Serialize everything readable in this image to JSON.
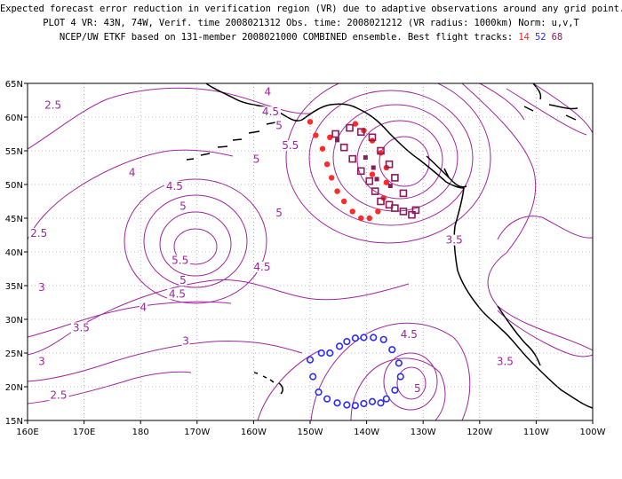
{
  "title": {
    "line1": "Expected forecast error reduction in verification region (VR) due to adaptive observations around any grid point.",
    "line2": "PLOT 4 VR: 43N, 74W, Verif. time 2008021312 Obs. time: 2008021212 (VR radius: 1000km) Norm: u,v,T",
    "line3_prefix": "NCEP/UW ETKF based on 131-member 2008021000 COMBINED ensemble.  Best flight tracks: ",
    "flight_a": "14",
    "flight_b": "52",
    "flight_c": "68"
  },
  "colors": {
    "contour": "#a0269e",
    "flight_14": "#ff2a2a",
    "flight_52": "#2a2aff",
    "flight_68": "#8b1a5a"
  },
  "axes": {
    "lon_labels": [
      "160E",
      "170E",
      "180",
      "170W",
      "160W",
      "150W",
      "140W",
      "130W",
      "120W",
      "110W",
      "100W"
    ],
    "lat_labels": [
      "65N",
      "60N",
      "55N",
      "50N",
      "45N",
      "40N",
      "35N",
      "30N",
      "25N",
      "20N",
      "15N"
    ],
    "lon_range": [
      160,
      260
    ],
    "lat_range": [
      15,
      65
    ],
    "grid": true
  },
  "contour_labels": [
    {
      "text": "2.5",
      "lon": 164.5,
      "lat": 61.5
    },
    {
      "text": "4",
      "lon": 202.5,
      "lat": 63.5
    },
    {
      "text": "4.5",
      "lon": 203,
      "lat": 60.5
    },
    {
      "text": "5",
      "lon": 204.5,
      "lat": 58.5
    },
    {
      "text": "5.5",
      "lon": 206.5,
      "lat": 55.5
    },
    {
      "text": "5",
      "lon": 200.5,
      "lat": 53.5
    },
    {
      "text": "4",
      "lon": 178.5,
      "lat": 51.5
    },
    {
      "text": "4.5",
      "lon": 186,
      "lat": 49.5
    },
    {
      "text": "5",
      "lon": 187.5,
      "lat": 46.5
    },
    {
      "text": "2.5",
      "lon": 162,
      "lat": 42.5
    },
    {
      "text": "5.5",
      "lon": 187,
      "lat": 38.5
    },
    {
      "text": "5",
      "lon": 187.5,
      "lat": 35.5
    },
    {
      "text": "4.5",
      "lon": 186.5,
      "lat": 33.5
    },
    {
      "text": "4.5",
      "lon": 201.5,
      "lat": 37.5
    },
    {
      "text": "5",
      "lon": 204.5,
      "lat": 45.5
    },
    {
      "text": "3.5",
      "lon": 235.5,
      "lat": 41.5
    },
    {
      "text": "3",
      "lon": 162.5,
      "lat": 34.5
    },
    {
      "text": "4",
      "lon": 180.5,
      "lat": 31.5
    },
    {
      "text": "3.5",
      "lon": 169.5,
      "lat": 28.5
    },
    {
      "text": "3",
      "lon": 188,
      "lat": 26.5
    },
    {
      "text": "3",
      "lon": 162.5,
      "lat": 23.5
    },
    {
      "text": "2.5",
      "lon": 165.5,
      "lat": 18.5
    },
    {
      "text": "4.5",
      "lon": 227.5,
      "lat": 27.5
    },
    {
      "text": "3.5",
      "lon": 244.5,
      "lat": 23.5
    },
    {
      "text": "5",
      "lon": 229,
      "lat": 19.5
    }
  ],
  "flight_14_points": [
    [
      210,
      59.3
    ],
    [
      211,
      57.3
    ],
    [
      212.2,
      55.3
    ],
    [
      213,
      53
    ],
    [
      213.8,
      51
    ],
    [
      214.8,
      49
    ],
    [
      216,
      47.5
    ],
    [
      217.5,
      46
    ],
    [
      219,
      45
    ],
    [
      220.5,
      45
    ],
    [
      222,
      46
    ],
    [
      223,
      48
    ],
    [
      223.5,
      50.3
    ],
    [
      223.5,
      52.5
    ],
    [
      222.5,
      54.7
    ],
    [
      221,
      56.5
    ],
    [
      219.5,
      58
    ],
    [
      213.5,
      57
    ],
    [
      218,
      59
    ],
    [
      221,
      51.5
    ]
  ],
  "flight_52_points": [
    [
      210,
      24
    ],
    [
      210.5,
      21.5
    ],
    [
      211.5,
      19.2
    ],
    [
      213,
      18.2
    ],
    [
      214.8,
      17.6
    ],
    [
      216.5,
      17.3
    ],
    [
      218,
      17.2
    ],
    [
      219.5,
      17.5
    ],
    [
      221,
      17.8
    ],
    [
      222.5,
      17.6
    ],
    [
      223.5,
      18.2
    ],
    [
      225,
      19.5
    ],
    [
      226,
      21.5
    ],
    [
      225.7,
      23.5
    ],
    [
      224.5,
      25.5
    ],
    [
      223,
      27
    ],
    [
      221.2,
      27.3
    ],
    [
      219.5,
      27.3
    ],
    [
      218,
      27.2
    ],
    [
      216.5,
      26.7
    ],
    [
      215.2,
      26
    ],
    [
      213.5,
      25
    ],
    [
      212,
      25
    ]
  ],
  "flight_68_points": [
    [
      214.5,
      57.5
    ],
    [
      216,
      55.5
    ],
    [
      217.5,
      53.8
    ],
    [
      219,
      52
    ],
    [
      220.5,
      50.5
    ],
    [
      221.5,
      49
    ],
    [
      222.5,
      47.5
    ],
    [
      224,
      47
    ],
    [
      225,
      46.5
    ],
    [
      226.5,
      46
    ],
    [
      228,
      45.5
    ],
    [
      228.7,
      46.2
    ],
    [
      226.5,
      48.7
    ],
    [
      225,
      51
    ],
    [
      224,
      53
    ],
    [
      222.5,
      55
    ],
    [
      221,
      57
    ],
    [
      219,
      57.8
    ],
    [
      217,
      58.4
    ]
  ],
  "flight_68_small_points": [
    [
      214.8,
      56.6
    ],
    [
      219.8,
      54
    ],
    [
      221.2,
      52.5
    ],
    [
      221.8,
      50.8
    ],
    [
      224.2,
      49.8
    ]
  ]
}
